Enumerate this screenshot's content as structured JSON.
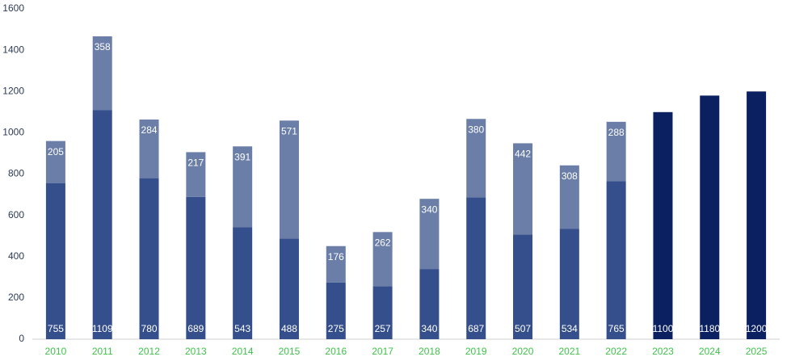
{
  "chart_data": {
    "type": "stacked-bar",
    "categories": [
      "2010",
      "2011",
      "2012",
      "2013",
      "2014",
      "2015",
      "2016",
      "2017",
      "2018",
      "2019",
      "2020",
      "2021",
      "2022",
      "2023",
      "2024",
      "2025"
    ],
    "series": [
      {
        "color": "#344f8b",
        "values": [
          755,
          1109,
          780,
          689,
          543,
          488,
          275,
          257,
          340,
          687,
          507,
          534,
          765,
          null,
          null,
          null
        ]
      },
      {
        "color": "#0b2060",
        "values": [
          null,
          null,
          null,
          null,
          null,
          null,
          null,
          null,
          null,
          null,
          null,
          null,
          null,
          1100,
          1180,
          1200
        ]
      },
      {
        "color": "#6a7ea8",
        "values": [
          205,
          358,
          284,
          217,
          391,
          571,
          176,
          262,
          340,
          380,
          442,
          308,
          288,
          null,
          null,
          null
        ]
      }
    ],
    "ylim": [
      0,
      1600
    ],
    "yticks": [
      0,
      200,
      400,
      600,
      800,
      1000,
      1200,
      1400,
      1600
    ],
    "category_label_color": "#3ec24a"
  }
}
